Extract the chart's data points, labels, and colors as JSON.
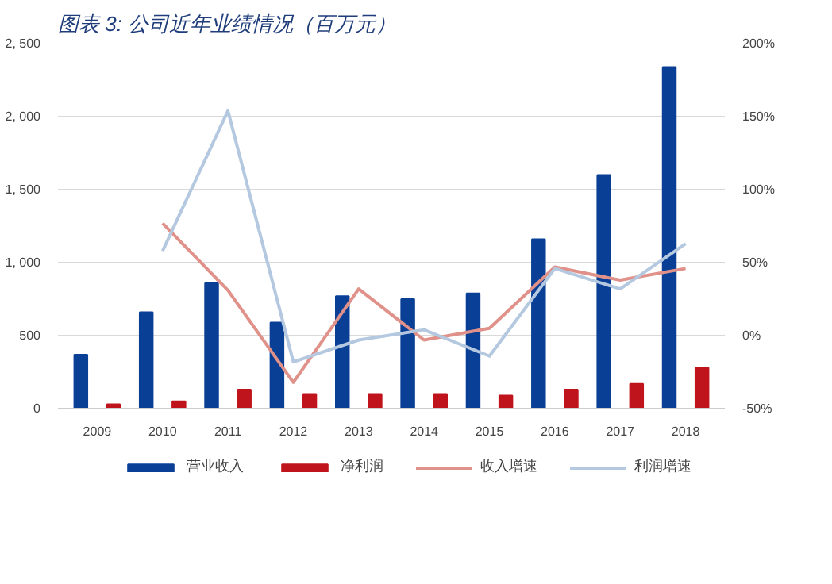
{
  "chart_data": {
    "type": "bar",
    "title": "图表 3: 公司近年业绩情况（百万元）",
    "categories": [
      "2009",
      "2010",
      "2011",
      "2012",
      "2013",
      "2014",
      "2015",
      "2016",
      "2017",
      "2018"
    ],
    "series": [
      {
        "name": "营业收入",
        "color": "#0a3f96",
        "values": [
          370,
          660,
          860,
          590,
          770,
          750,
          790,
          1160,
          1600,
          2340
        ]
      },
      {
        "name": "净利润",
        "color": "#c0141c",
        "values": [
          30,
          50,
          130,
          100,
          100,
          100,
          90,
          130,
          170,
          280
        ]
      },
      {
        "name": "收入增速",
        "type": "line",
        "axis": "y2",
        "color": "#e0928a",
        "values": [
          null,
          77,
          31,
          -32,
          32,
          -3,
          5,
          47,
          38,
          46
        ]
      },
      {
        "name": "利润增速",
        "type": "line",
        "axis": "y2",
        "color": "#b4c8e0",
        "values": [
          null,
          58,
          154,
          -18,
          -3,
          4,
          -14,
          46,
          32,
          63
        ]
      }
    ],
    "ylim": [
      0,
      2500
    ],
    "yticks": [
      {
        "value": 0,
        "label": "0"
      },
      {
        "value": 500,
        "label": "500"
      },
      {
        "value": 1000,
        "label": "1, 000"
      },
      {
        "value": 1500,
        "label": "1, 500"
      },
      {
        "value": 2000,
        "label": "2, 000"
      },
      {
        "value": 2500,
        "label": "2, 500"
      }
    ],
    "y2lim": [
      -50,
      200
    ],
    "y2ticks": [
      {
        "value": -50,
        "label": "-50%"
      },
      {
        "value": 0,
        "label": "0%"
      },
      {
        "value": 50,
        "label": "50%"
      },
      {
        "value": 100,
        "label": "100%"
      },
      {
        "value": 150,
        "label": "150%"
      },
      {
        "value": 200,
        "label": "200%"
      }
    ],
    "grid": "y",
    "legend": "bottom"
  }
}
